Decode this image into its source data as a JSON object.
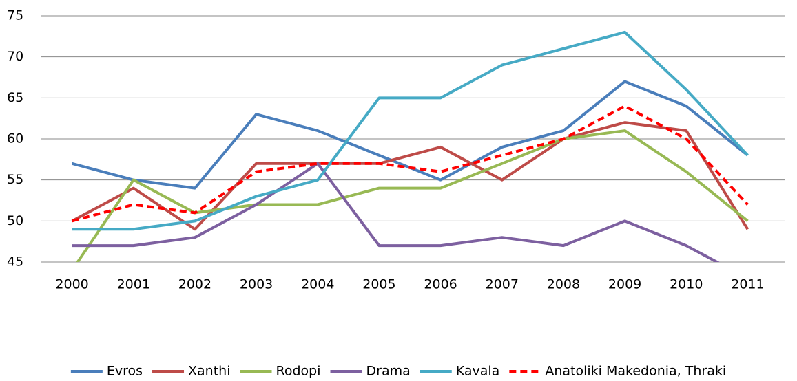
{
  "chart_data": {
    "type": "line",
    "categories": [
      "2000",
      "2001",
      "2002",
      "2003",
      "2004",
      "2005",
      "2006",
      "2007",
      "2008",
      "2009",
      "2010",
      "2011"
    ],
    "series": [
      {
        "name": "Evros",
        "color": "#4a7ebb",
        "values": [
          57,
          55,
          54,
          63,
          61,
          58,
          55,
          59,
          61,
          67,
          64,
          58
        ]
      },
      {
        "name": "Xanthi",
        "color": "#be4b48",
        "values": [
          50,
          54,
          49,
          57,
          57,
          57,
          59,
          55,
          60,
          62,
          61,
          49
        ]
      },
      {
        "name": "Rodopi",
        "color": "#98b954",
        "values": [
          44,
          55,
          51,
          52,
          52,
          54,
          54,
          57,
          60,
          61,
          56,
          50
        ]
      },
      {
        "name": "Drama",
        "color": "#7d60a0",
        "values": [
          47,
          47,
          48,
          52,
          57,
          47,
          47,
          48,
          47,
          50,
          47,
          43
        ]
      },
      {
        "name": "Kavala",
        "color": "#46aac5",
        "values": [
          49,
          49,
          50,
          53,
          55,
          65,
          65,
          69,
          71,
          73,
          66,
          58
        ]
      },
      {
        "name": "Anatoliki Makedonia, Thraki",
        "color": "#ff0000",
        "dashed": true,
        "values": [
          50,
          52,
          51,
          56,
          57,
          57,
          56,
          58,
          60,
          64,
          60,
          52
        ]
      }
    ],
    "ylim": [
      45,
      75
    ],
    "yticks": [
      45,
      50,
      55,
      60,
      65,
      70,
      75
    ],
    "grid": true,
    "legend": "bottom"
  }
}
